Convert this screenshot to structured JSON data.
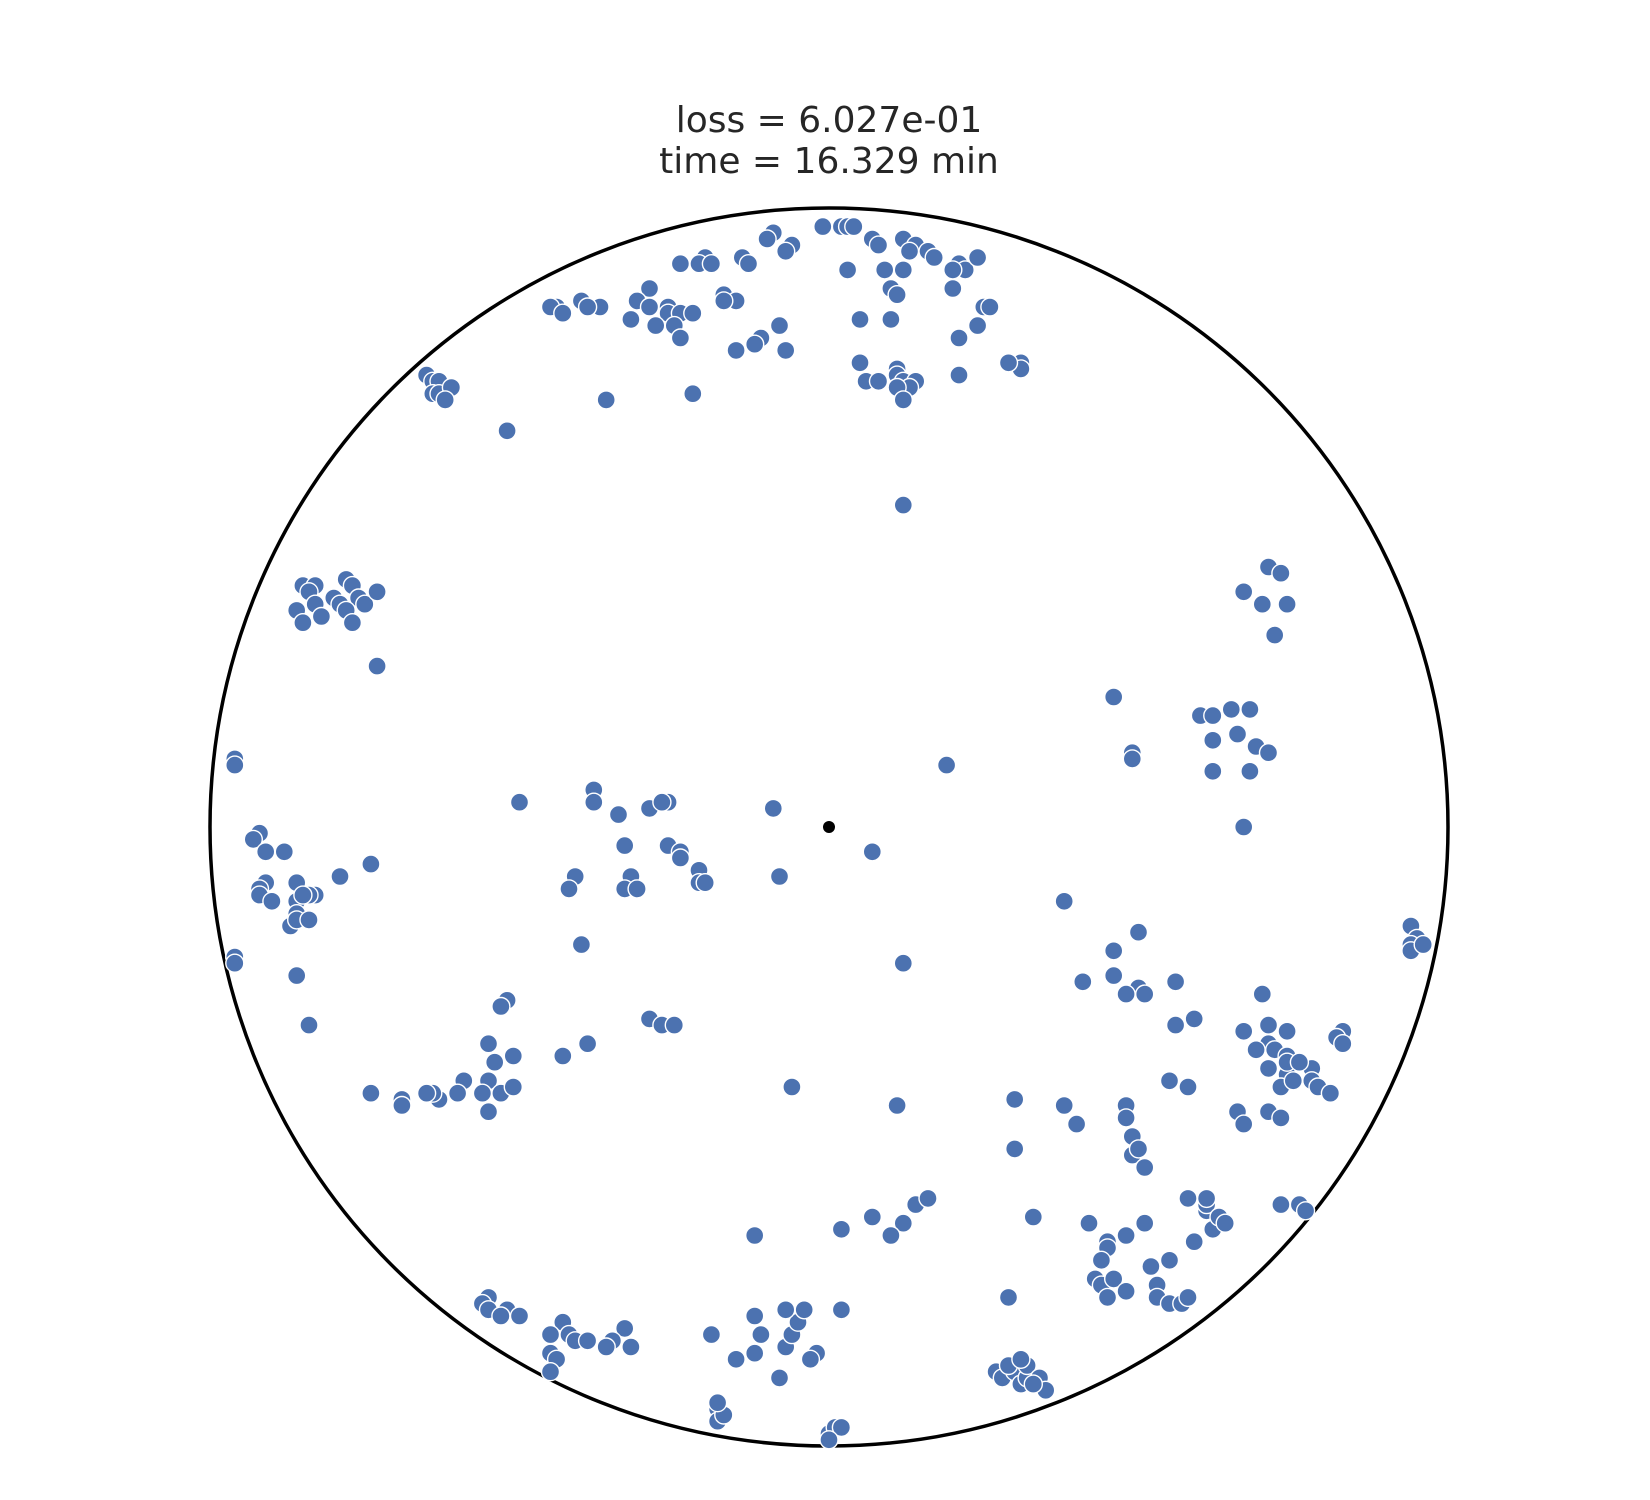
{
  "chart_data": {
    "type": "scatter",
    "title_lines": [
      "loss = 6.027e-01",
      "time = 16.329 min"
    ],
    "xlim": [
      -1.0,
      1.0
    ],
    "ylim": [
      -1.0,
      1.0
    ],
    "boundary": "unit circle",
    "grid": false,
    "colors": {
      "points": "#4c72b0",
      "center": "#000000",
      "boundary": "#000000"
    },
    "center_point": {
      "x": 0.0,
      "y": 0.0
    },
    "points": [
      [
        -0.01,
        0.97
      ],
      [
        0.02,
        0.97
      ],
      [
        0.03,
        0.97
      ],
      [
        0.04,
        0.97
      ],
      [
        -0.09,
        0.96
      ],
      [
        -0.1,
        0.95
      ],
      [
        0.07,
        0.95
      ],
      [
        -0.06,
        0.94
      ],
      [
        -0.07,
        0.93
      ],
      [
        0.08,
        0.94
      ],
      [
        0.12,
        0.95
      ],
      [
        0.14,
        0.94
      ],
      [
        0.16,
        0.93
      ],
      [
        0.17,
        0.92
      ],
      [
        0.13,
        0.93
      ],
      [
        -0.2,
        0.92
      ],
      [
        -0.21,
        0.91
      ],
      [
        -0.14,
        0.92
      ],
      [
        -0.24,
        0.91
      ],
      [
        -0.19,
        0.91
      ],
      [
        0.03,
        0.9
      ],
      [
        0.21,
        0.91
      ],
      [
        0.22,
        0.9
      ],
      [
        0.2,
        0.9
      ],
      [
        0.09,
        0.9
      ],
      [
        0.12,
        0.9
      ],
      [
        -0.13,
        0.91
      ],
      [
        0.24,
        0.92
      ],
      [
        0.2,
        0.87
      ],
      [
        0.1,
        0.87
      ],
      [
        0.11,
        0.86
      ],
      [
        -0.17,
        0.86
      ],
      [
        -0.15,
        0.85
      ],
      [
        -0.17,
        0.85
      ],
      [
        -0.29,
        0.87
      ],
      [
        -0.31,
        0.85
      ],
      [
        -0.26,
        0.84
      ],
      [
        -0.26,
        0.83
      ],
      [
        -0.24,
        0.83
      ],
      [
        -0.22,
        0.83
      ],
      [
        -0.29,
        0.84
      ],
      [
        -0.32,
        0.82
      ],
      [
        -0.28,
        0.81
      ],
      [
        -0.4,
        0.85
      ],
      [
        -0.37,
        0.84
      ],
      [
        -0.39,
        0.84
      ],
      [
        -0.44,
        0.84
      ],
      [
        -0.45,
        0.84
      ],
      [
        -0.43,
        0.83
      ],
      [
        0.25,
        0.84
      ],
      [
        0.26,
        0.84
      ],
      [
        0.24,
        0.81
      ],
      [
        0.21,
        0.79
      ],
      [
        0.05,
        0.82
      ],
      [
        0.1,
        0.82
      ],
      [
        -0.08,
        0.81
      ],
      [
        -0.11,
        0.79
      ],
      [
        -0.25,
        0.81
      ],
      [
        -0.24,
        0.79
      ],
      [
        -0.15,
        0.77
      ],
      [
        -0.12,
        0.78
      ],
      [
        -0.07,
        0.77
      ],
      [
        0.05,
        0.75
      ],
      [
        0.11,
        0.74
      ],
      [
        0.11,
        0.73
      ],
      [
        0.12,
        0.72
      ],
      [
        0.14,
        0.72
      ],
      [
        0.06,
        0.72
      ],
      [
        0.08,
        0.72
      ],
      [
        0.31,
        0.75
      ],
      [
        0.31,
        0.74
      ],
      [
        0.29,
        0.75
      ],
      [
        0.21,
        0.73
      ],
      [
        0.13,
        0.71
      ],
      [
        0.11,
        0.71
      ],
      [
        0.12,
        0.69
      ],
      [
        -0.65,
        0.73
      ],
      [
        -0.64,
        0.72
      ],
      [
        -0.63,
        0.72
      ],
      [
        -0.64,
        0.7
      ],
      [
        -0.63,
        0.7
      ],
      [
        -0.61,
        0.71
      ],
      [
        -0.62,
        0.69
      ],
      [
        -0.36,
        0.69
      ],
      [
        -0.22,
        0.7
      ],
      [
        -0.52,
        0.64
      ],
      [
        0.12,
        0.52
      ],
      [
        -0.85,
        0.39
      ],
      [
        -0.83,
        0.39
      ],
      [
        -0.78,
        0.4
      ],
      [
        -0.77,
        0.39
      ],
      [
        -0.84,
        0.38
      ],
      [
        -0.76,
        0.37
      ],
      [
        -0.8,
        0.37
      ],
      [
        -0.86,
        0.35
      ],
      [
        -0.83,
        0.36
      ],
      [
        -0.79,
        0.36
      ],
      [
        -0.78,
        0.35
      ],
      [
        -0.82,
        0.34
      ],
      [
        -0.85,
        0.33
      ],
      [
        -0.75,
        0.36
      ],
      [
        -0.77,
        0.33
      ],
      [
        -0.73,
        0.38
      ],
      [
        -0.73,
        0.26
      ],
      [
        0.71,
        0.42
      ],
      [
        0.73,
        0.41
      ],
      [
        0.67,
        0.38
      ],
      [
        0.7,
        0.36
      ],
      [
        0.74,
        0.36
      ],
      [
        0.72,
        0.31
      ],
      [
        0.46,
        0.21
      ],
      [
        0.65,
        0.19
      ],
      [
        0.6,
        0.18
      ],
      [
        0.62,
        0.18
      ],
      [
        0.68,
        0.19
      ],
      [
        0.62,
        0.14
      ],
      [
        0.66,
        0.15
      ],
      [
        0.69,
        0.13
      ],
      [
        0.71,
        0.12
      ],
      [
        0.49,
        0.12
      ],
      [
        0.49,
        0.11
      ],
      [
        0.19,
        0.1
      ],
      [
        0.62,
        0.09
      ],
      [
        0.68,
        0.09
      ],
      [
        -0.96,
        0.11
      ],
      [
        -0.96,
        0.11
      ],
      [
        -0.96,
        0.1
      ],
      [
        0.67,
        0.0
      ],
      [
        -0.92,
        -0.01
      ],
      [
        -0.93,
        -0.02
      ],
      [
        -0.91,
        -0.04
      ],
      [
        -0.88,
        -0.04
      ],
      [
        -0.91,
        -0.09
      ],
      [
        -0.92,
        -0.1
      ],
      [
        -0.92,
        -0.11
      ],
      [
        -0.9,
        -0.12
      ],
      [
        -0.86,
        -0.09
      ],
      [
        -0.86,
        -0.12
      ],
      [
        -0.86,
        -0.14
      ],
      [
        -0.83,
        -0.11
      ],
      [
        -0.79,
        -0.08
      ],
      [
        -0.84,
        -0.11
      ],
      [
        -0.87,
        -0.16
      ],
      [
        -0.86,
        -0.15
      ],
      [
        -0.84,
        -0.15
      ],
      [
        -0.85,
        -0.11
      ],
      [
        -0.74,
        -0.06
      ],
      [
        -0.5,
        0.04
      ],
      [
        -0.38,
        0.06
      ],
      [
        -0.38,
        0.04
      ],
      [
        -0.34,
        0.02
      ],
      [
        -0.29,
        0.03
      ],
      [
        -0.26,
        0.04
      ],
      [
        -0.27,
        0.04
      ],
      [
        -0.09,
        0.03
      ],
      [
        -0.33,
        -0.03
      ],
      [
        -0.26,
        -0.03
      ],
      [
        -0.24,
        -0.04
      ],
      [
        -0.24,
        -0.05
      ],
      [
        -0.21,
        -0.07
      ],
      [
        -0.21,
        -0.09
      ],
      [
        -0.2,
        -0.09
      ],
      [
        -0.41,
        -0.08
      ],
      [
        -0.42,
        -0.1
      ],
      [
        -0.32,
        -0.08
      ],
      [
        -0.33,
        -0.1
      ],
      [
        -0.31,
        -0.1
      ],
      [
        -0.08,
        -0.08
      ],
      [
        0.07,
        -0.04
      ],
      [
        0.38,
        -0.12
      ],
      [
        0.5,
        -0.17
      ],
      [
        0.46,
        -0.2
      ],
      [
        -0.4,
        -0.19
      ],
      [
        0.12,
        -0.22
      ],
      [
        -0.96,
        -0.21
      ],
      [
        -0.96,
        -0.21
      ],
      [
        -0.96,
        -0.22
      ],
      [
        0.41,
        -0.25
      ],
      [
        0.46,
        -0.24
      ],
      [
        0.5,
        -0.26
      ],
      [
        0.56,
        -0.25
      ],
      [
        0.48,
        -0.27
      ],
      [
        0.51,
        -0.27
      ],
      [
        0.94,
        -0.16
      ],
      [
        0.95,
        -0.18
      ],
      [
        0.94,
        -0.19
      ],
      [
        0.94,
        -0.2
      ],
      [
        0.96,
        -0.19
      ],
      [
        -0.86,
        -0.24
      ],
      [
        -0.52,
        -0.28
      ],
      [
        -0.53,
        -0.29
      ],
      [
        -0.84,
        -0.32
      ],
      [
        -0.29,
        -0.31
      ],
      [
        -0.27,
        -0.32
      ],
      [
        -0.25,
        -0.32
      ],
      [
        0.56,
        -0.32
      ],
      [
        0.59,
        -0.31
      ],
      [
        0.7,
        -0.27
      ],
      [
        0.67,
        -0.33
      ],
      [
        0.71,
        -0.32
      ],
      [
        0.74,
        -0.33
      ],
      [
        0.83,
        -0.33
      ],
      [
        0.82,
        -0.34
      ],
      [
        0.83,
        -0.35
      ],
      [
        0.71,
        -0.35
      ],
      [
        0.72,
        -0.36
      ],
      [
        0.74,
        -0.37
      ],
      [
        0.71,
        -0.39
      ],
      [
        0.74,
        -0.4
      ],
      [
        0.74,
        -0.38
      ],
      [
        0.69,
        -0.36
      ],
      [
        0.78,
        -0.39
      ],
      [
        0.76,
        -0.38
      ],
      [
        0.73,
        -0.42
      ],
      [
        0.75,
        -0.41
      ],
      [
        0.78,
        -0.41
      ],
      [
        0.79,
        -0.42
      ],
      [
        0.81,
        -0.43
      ],
      [
        0.55,
        -0.41
      ],
      [
        0.58,
        -0.42
      ],
      [
        -0.55,
        -0.35
      ],
      [
        -0.51,
        -0.37
      ],
      [
        -0.39,
        -0.35
      ],
      [
        -0.43,
        -0.37
      ],
      [
        -0.54,
        -0.38
      ],
      [
        -0.55,
        -0.41
      ],
      [
        -0.59,
        -0.41
      ],
      [
        -0.56,
        -0.43
      ],
      [
        -0.6,
        -0.43
      ],
      [
        -0.53,
        -0.43
      ],
      [
        -0.55,
        -0.46
      ],
      [
        -0.51,
        -0.42
      ],
      [
        -0.63,
        -0.44
      ],
      [
        -0.64,
        -0.43
      ],
      [
        -0.65,
        -0.43
      ],
      [
        -0.69,
        -0.44
      ],
      [
        -0.69,
        -0.45
      ],
      [
        -0.74,
        -0.43
      ],
      [
        -0.06,
        -0.42
      ],
      [
        0.11,
        -0.45
      ],
      [
        0.3,
        -0.44
      ],
      [
        0.38,
        -0.45
      ],
      [
        0.48,
        -0.45
      ],
      [
        0.48,
        -0.47
      ],
      [
        0.4,
        -0.48
      ],
      [
        0.66,
        -0.46
      ],
      [
        0.71,
        -0.46
      ],
      [
        0.67,
        -0.48
      ],
      [
        0.73,
        -0.47
      ],
      [
        0.3,
        -0.52
      ],
      [
        0.49,
        -0.5
      ],
      [
        0.49,
        -0.53
      ],
      [
        0.5,
        -0.52
      ],
      [
        0.51,
        -0.55
      ],
      [
        0.07,
        -0.63
      ],
      [
        0.14,
        -0.61
      ],
      [
        0.16,
        -0.6
      ],
      [
        0.12,
        -0.64
      ],
      [
        0.1,
        -0.66
      ],
      [
        -0.12,
        -0.66
      ],
      [
        0.02,
        -0.65
      ],
      [
        0.33,
        -0.63
      ],
      [
        0.42,
        -0.64
      ],
      [
        0.45,
        -0.67
      ],
      [
        0.48,
        -0.66
      ],
      [
        0.51,
        -0.64
      ],
      [
        0.58,
        -0.6
      ],
      [
        0.61,
        -0.62
      ],
      [
        0.61,
        -0.61
      ],
      [
        0.62,
        -0.65
      ],
      [
        0.63,
        -0.63
      ],
      [
        0.64,
        -0.64
      ],
      [
        0.59,
        -0.67
      ],
      [
        0.55,
        -0.7
      ],
      [
        0.52,
        -0.71
      ],
      [
        0.45,
        -0.68
      ],
      [
        0.44,
        -0.7
      ],
      [
        0.43,
        -0.73
      ],
      [
        0.44,
        -0.74
      ],
      [
        0.46,
        -0.73
      ],
      [
        0.45,
        -0.76
      ],
      [
        0.48,
        -0.75
      ],
      [
        0.53,
        -0.74
      ],
      [
        0.53,
        -0.76
      ],
      [
        0.55,
        -0.77
      ],
      [
        0.57,
        -0.77
      ],
      [
        0.58,
        -0.76
      ],
      [
        0.61,
        -0.6
      ],
      [
        0.73,
        -0.61
      ],
      [
        0.76,
        -0.61
      ],
      [
        0.77,
        -0.62
      ],
      [
        0.29,
        -0.76
      ],
      [
        -0.55,
        -0.76
      ],
      [
        -0.56,
        -0.77
      ],
      [
        -0.55,
        -0.78
      ],
      [
        -0.52,
        -0.78
      ],
      [
        -0.53,
        -0.79
      ],
      [
        -0.5,
        -0.79
      ],
      [
        -0.43,
        -0.8
      ],
      [
        -0.45,
        -0.82
      ],
      [
        -0.42,
        -0.82
      ],
      [
        -0.45,
        -0.85
      ],
      [
        -0.44,
        -0.86
      ],
      [
        -0.45,
        -0.88
      ],
      [
        -0.41,
        -0.83
      ],
      [
        -0.39,
        -0.83
      ],
      [
        -0.33,
        -0.81
      ],
      [
        -0.35,
        -0.83
      ],
      [
        -0.32,
        -0.84
      ],
      [
        -0.36,
        -0.84
      ],
      [
        -0.19,
        -0.82
      ],
      [
        -0.12,
        -0.79
      ],
      [
        -0.11,
        -0.82
      ],
      [
        -0.15,
        -0.86
      ],
      [
        -0.12,
        -0.85
      ],
      [
        -0.07,
        -0.84
      ],
      [
        -0.06,
        -0.82
      ],
      [
        -0.05,
        -0.8
      ],
      [
        -0.07,
        -0.78
      ],
      [
        -0.04,
        -0.78
      ],
      [
        0.02,
        -0.78
      ],
      [
        -0.08,
        -0.89
      ],
      [
        -0.02,
        -0.85
      ],
      [
        -0.03,
        -0.86
      ],
      [
        0.27,
        -0.88
      ],
      [
        0.28,
        -0.89
      ],
      [
        0.3,
        -0.88
      ],
      [
        0.29,
        -0.87
      ],
      [
        0.31,
        -0.9
      ],
      [
        0.32,
        -0.89
      ],
      [
        0.32,
        -0.87
      ],
      [
        0.31,
        -0.86
      ],
      [
        0.34,
        -0.89
      ],
      [
        0.35,
        -0.91
      ],
      [
        0.33,
        -0.9
      ],
      [
        -0.18,
        -0.94
      ],
      [
        -0.18,
        -0.96
      ],
      [
        -0.17,
        -0.95
      ],
      [
        -0.18,
        -0.93
      ],
      [
        0.0,
        -0.98
      ],
      [
        0.01,
        -0.97
      ],
      [
        0.02,
        -0.97
      ],
      [
        0.0,
        -0.99
      ]
    ]
  }
}
